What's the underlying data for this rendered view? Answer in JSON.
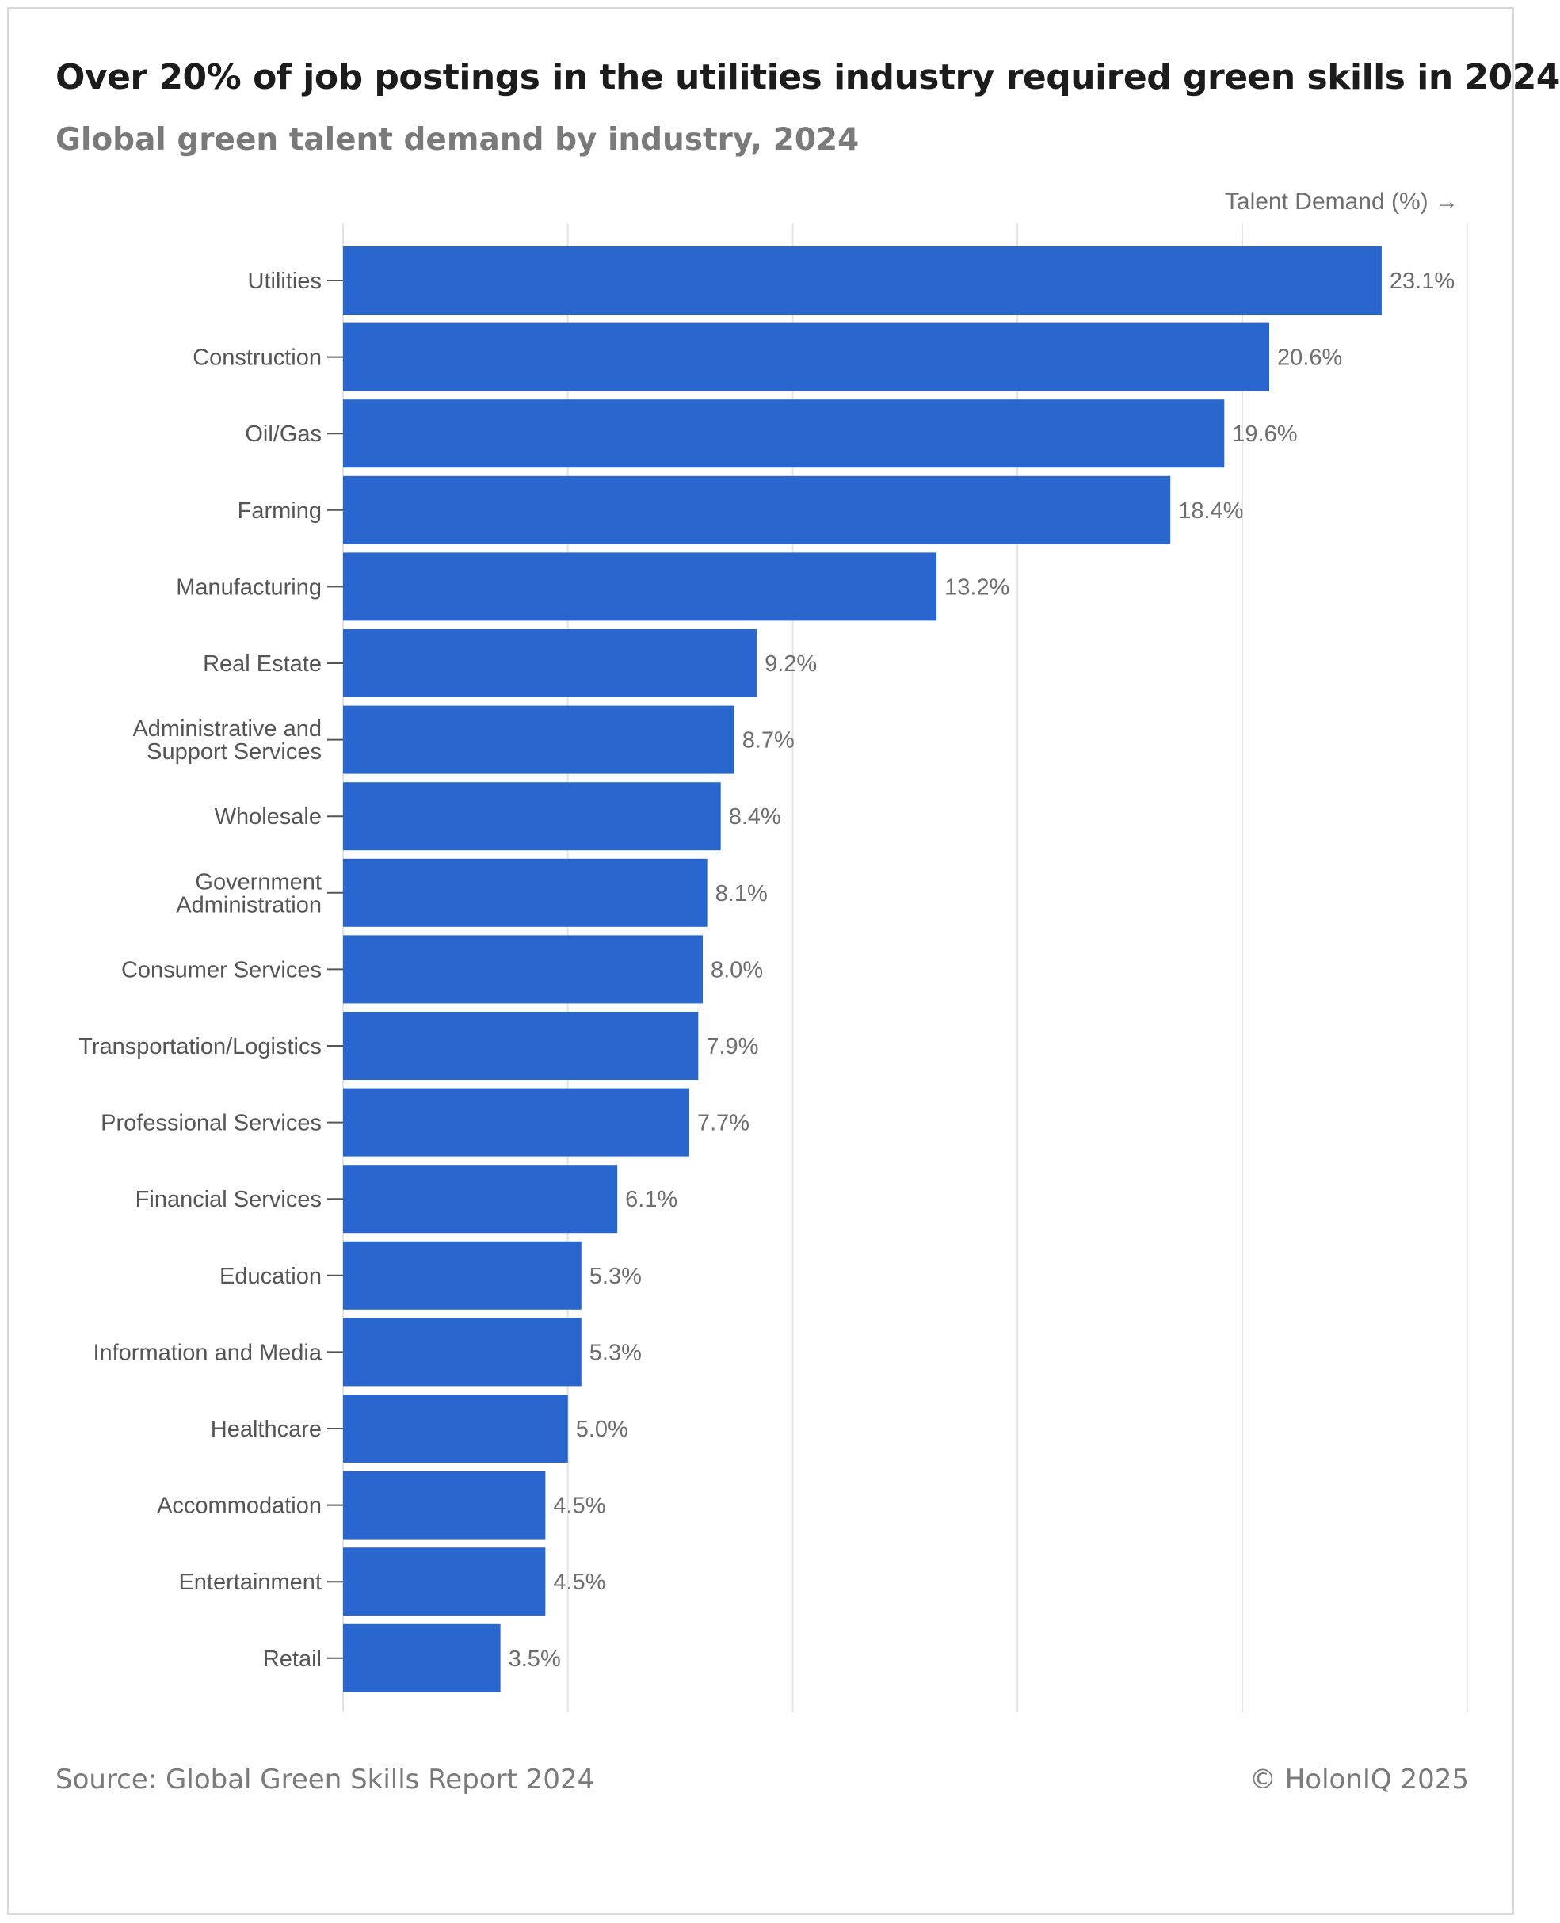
{
  "header": {
    "title": "Over 20% of job postings in the utilities industry required green skills in 2024",
    "subtitle": "Global green talent demand by industry, 2024"
  },
  "axis_title": "Talent Demand (%) →",
  "footer": {
    "source": "Source: Global Green Skills Report 2024",
    "copyright": "© HolonIQ 2025"
  },
  "colors": {
    "bar": "#2967cf",
    "grid": "#e4e4e4",
    "tick": "#555555"
  },
  "chart_data": {
    "type": "bar",
    "orientation": "horizontal",
    "title": "Over 20% of job postings in the utilities industry required green skills in 2024",
    "subtitle": "Global green talent demand by industry, 2024",
    "xlabel": "Talent Demand (%) →",
    "ylabel": "",
    "xlim": [
      0,
      25
    ],
    "grid": true,
    "unit": "%",
    "categories": [
      [
        "Utilities"
      ],
      [
        "Construction"
      ],
      [
        "Oil/Gas"
      ],
      [
        "Farming"
      ],
      [
        "Manufacturing"
      ],
      [
        "Real Estate"
      ],
      [
        "Administrative and",
        "Support Services"
      ],
      [
        "Wholesale"
      ],
      [
        "Government",
        "Administration"
      ],
      [
        "Consumer Services"
      ],
      [
        "Transportation/Logistics"
      ],
      [
        "Professional Services"
      ],
      [
        "Financial Services"
      ],
      [
        "Education"
      ],
      [
        "Information and Media"
      ],
      [
        "Healthcare"
      ],
      [
        "Accommodation"
      ],
      [
        "Entertainment"
      ],
      [
        "Retail"
      ]
    ],
    "values": [
      23.1,
      20.6,
      19.6,
      18.4,
      13.2,
      9.2,
      8.7,
      8.4,
      8.1,
      8.0,
      7.9,
      7.7,
      6.1,
      5.3,
      5.3,
      5.0,
      4.5,
      4.5,
      3.5
    ],
    "value_labels": [
      "23.1%",
      "20.6%",
      "19.6%",
      "18.4%",
      "13.2%",
      "9.2%",
      "8.7%",
      "8.4%",
      "8.1%",
      "8.0%",
      "7.9%",
      "7.7%",
      "6.1%",
      "5.3%",
      "5.3%",
      "5.0%",
      "4.5%",
      "4.5%",
      "3.5%"
    ]
  }
}
